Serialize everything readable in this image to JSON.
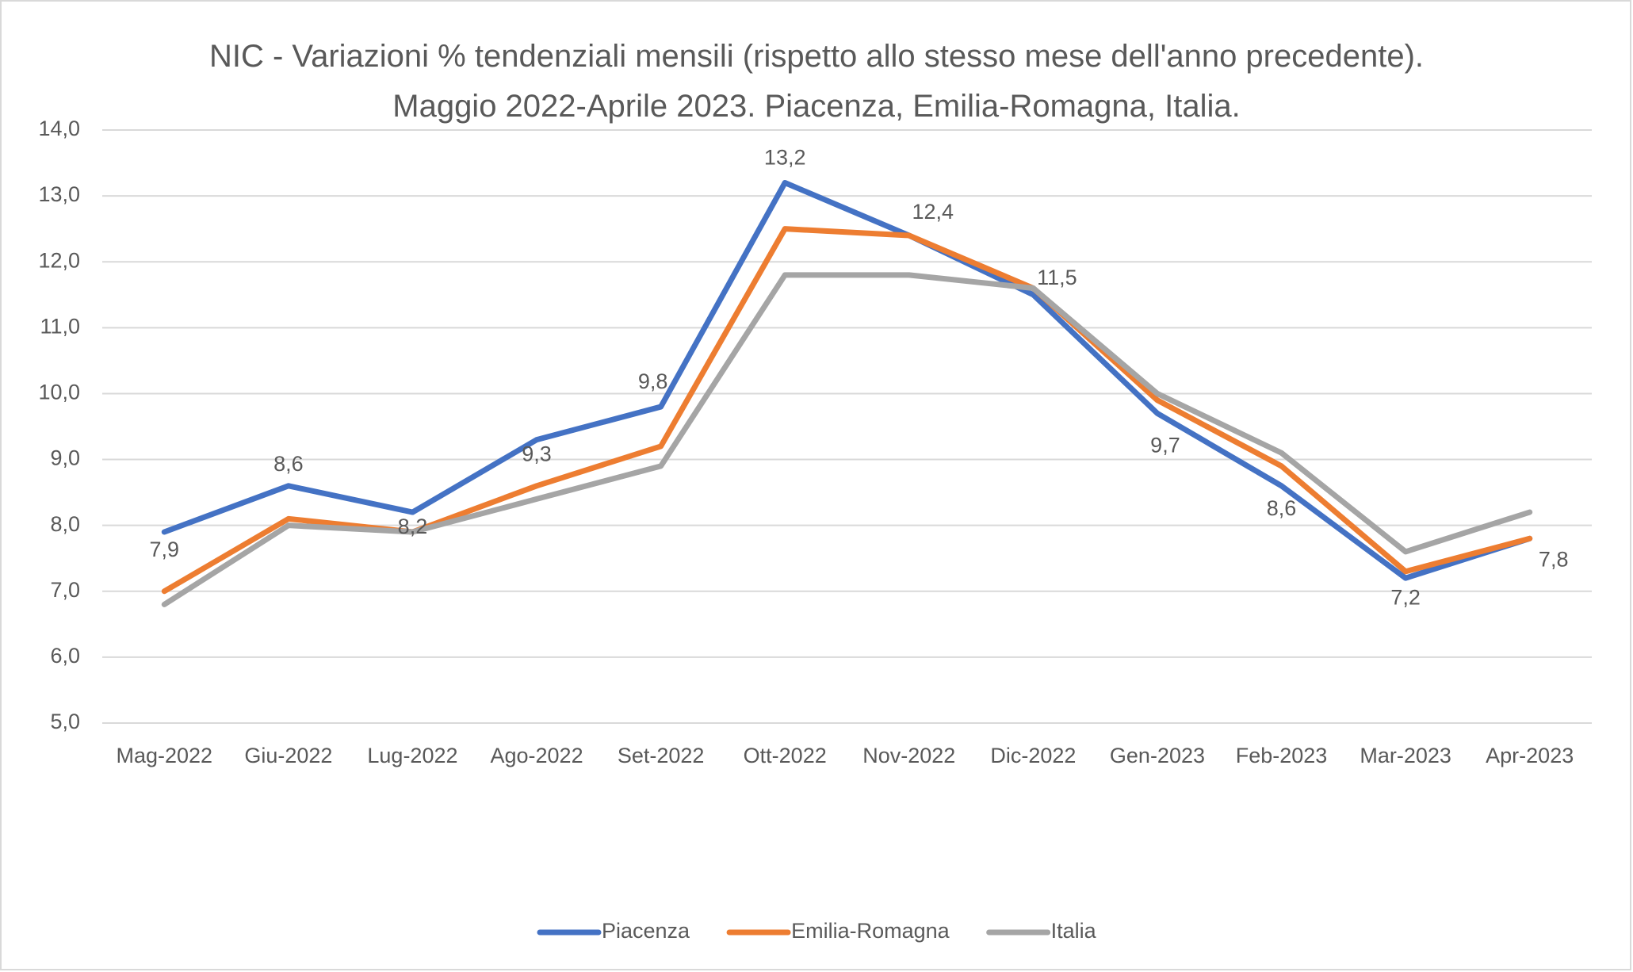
{
  "chart_data": {
    "type": "line",
    "title": "NIC - Variazioni % tendenziali mensili (rispetto allo stesso mese dell'anno precedente).  Maggio 2022-Aprile 2023. Piacenza, Emilia-Romagna, Italia.",
    "categories": [
      "Mag-2022",
      "Giu-2022",
      "Lug-2022",
      "Ago-2022",
      "Set-2022",
      "Ott-2022",
      "Nov-2022",
      "Dic-2022",
      "Gen-2023",
      "Feb-2023",
      "Mar-2023",
      "Apr-2023"
    ],
    "series": [
      {
        "name": "Piacenza",
        "color": "#4472c4",
        "values": [
          7.9,
          8.6,
          8.2,
          9.3,
          9.8,
          13.2,
          12.4,
          11.5,
          9.7,
          8.6,
          7.2,
          7.8
        ],
        "value_labels": [
          "7,9",
          "8,6",
          "8,2",
          "9,3",
          "9,8",
          "13,2",
          "12,4",
          "11,5",
          "9,7",
          "8,6",
          "7,2",
          "7,8"
        ]
      },
      {
        "name": "Emilia-Romagna",
        "color": "#ed7d31",
        "values": [
          7.0,
          8.1,
          7.9,
          8.6,
          9.2,
          12.5,
          12.4,
          11.6,
          9.9,
          8.9,
          7.3,
          7.8
        ]
      },
      {
        "name": "Italia",
        "color": "#a5a5a5",
        "values": [
          6.8,
          8.0,
          7.9,
          8.4,
          8.9,
          11.8,
          11.8,
          11.6,
          10.0,
          9.1,
          7.6,
          8.2
        ]
      }
    ],
    "ylim": [
      5,
      14
    ],
    "yticks": [
      {
        "value": 5,
        "label": "5,0"
      },
      {
        "value": 6,
        "label": "6,0"
      },
      {
        "value": 7,
        "label": "7,0"
      },
      {
        "value": 8,
        "label": "8,0"
      },
      {
        "value": 9,
        "label": "9,0"
      },
      {
        "value": 10,
        "label": "10,0"
      },
      {
        "value": 11,
        "label": "11,0"
      },
      {
        "value": 12,
        "label": "12,0"
      },
      {
        "value": 13,
        "label": "13,0"
      },
      {
        "value": 14,
        "label": "14,0"
      }
    ],
    "grid": true,
    "legend": "bottom"
  }
}
